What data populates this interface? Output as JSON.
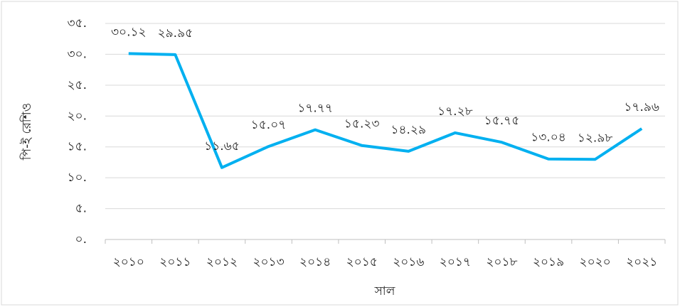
{
  "chart_data": {
    "type": "line",
    "y_label": "পি-ই রেশিও",
    "x_label": "সাল",
    "categories": [
      "২০১০",
      "২০১১",
      "২০১২",
      "২০১৩",
      "২০১৪",
      "২০১৫",
      "২০১৬",
      "২০১৭",
      "২০১৮",
      "২০১৯",
      "২০২০",
      "২০২১"
    ],
    "series": [
      {
        "color": "#00b0f0",
        "values": [
          30.12,
          29.95,
          11.65,
          15.07,
          17.77,
          15.23,
          14.29,
          17.28,
          15.75,
          13.04,
          12.98,
          17.96
        ],
        "value_labels": [
          "৩০.১২",
          "২৯.৯৫",
          "১১.৬৫",
          "১৫.০৭",
          "১৭.৭৭",
          "১৫.২৩",
          "১৪.২৯",
          "১৭.২৮",
          "১৫.৭৫",
          "১৩.০৪",
          "১২.৯৮",
          "১৭.৯৬"
        ]
      }
    ],
    "ylim": [
      0,
      35
    ],
    "yticks": [
      {
        "value": 0,
        "label": "০."
      },
      {
        "value": 5,
        "label": "৫."
      },
      {
        "value": 10,
        "label": "১০."
      },
      {
        "value": 15,
        "label": "১৫."
      },
      {
        "value": 20,
        "label": "২০."
      },
      {
        "value": 25,
        "label": "২৫."
      },
      {
        "value": 30,
        "label": "৩০."
      },
      {
        "value": 35,
        "label": "৩৫."
      }
    ],
    "grid": true
  }
}
